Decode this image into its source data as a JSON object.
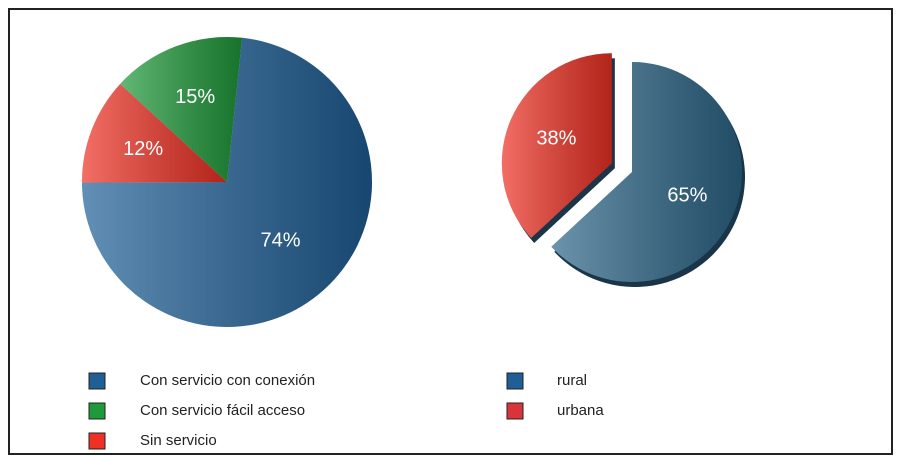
{
  "chart_data": [
    {
      "type": "pie",
      "categories": [
        "Con servicio con conexión",
        "Sin servicio",
        "Con servicio fácil acceso"
      ],
      "values": [
        74,
        12,
        15
      ],
      "value_labels": [
        "74%",
        "12%",
        "15%"
      ],
      "colors": [
        "#1f5f96",
        "#ee3124",
        "#1f9a3a"
      ]
    },
    {
      "type": "pie",
      "categories": [
        "rural",
        "urbana"
      ],
      "values": [
        65,
        38
      ],
      "value_labels": [
        "65%",
        "38%"
      ],
      "colors": [
        "#2d6688",
        "#ee3124"
      ],
      "legend_colors": [
        "#1f5f96",
        "#d8343a"
      ],
      "explode": [
        false,
        true
      ]
    }
  ]
}
